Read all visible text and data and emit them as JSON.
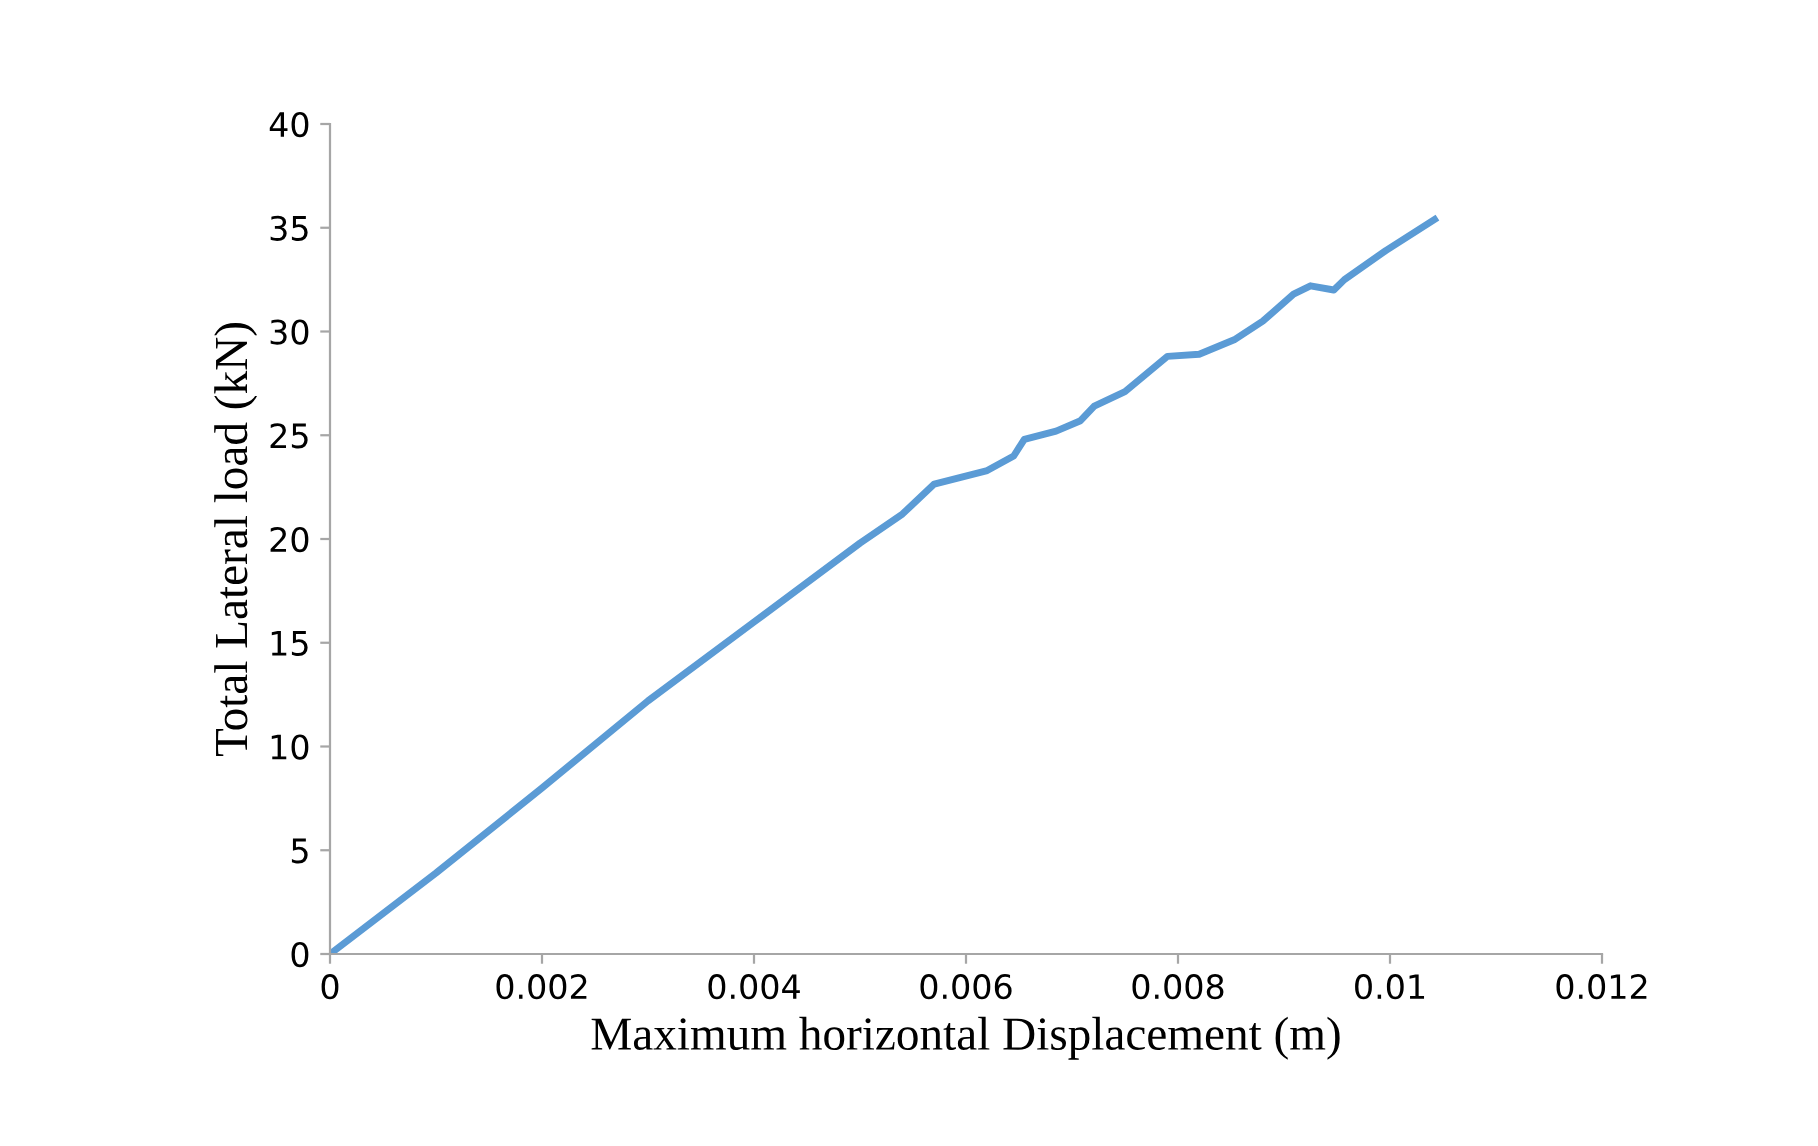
{
  "chart_data": {
    "type": "line",
    "xlabel": "Maximum horizontal Displacement (m)",
    "ylabel": "Total Lateral load (kN)",
    "xlim": [
      0,
      0.012
    ],
    "xticks": [
      0,
      0.002,
      0.004,
      0.006,
      0.008,
      0.01,
      0.012
    ],
    "ylim": [
      0,
      40
    ],
    "yticks": [
      0,
      5,
      10,
      15,
      20,
      25,
      30,
      35,
      40
    ],
    "grid": false,
    "legend": false,
    "marker": "none",
    "line_style": "solid",
    "series": [
      {
        "color": "#5b9bd5",
        "x": [
          0,
          0.001,
          0.002,
          0.003,
          0.004,
          0.005,
          0.0054,
          0.0057,
          0.0062,
          0.00645,
          0.00655,
          0.00685,
          0.00708,
          0.00721,
          0.0075,
          0.0079,
          0.0082,
          0.00853,
          0.0088,
          0.00909,
          0.00925,
          0.00947,
          0.00957,
          0.00996,
          0.01042
        ],
        "values": [
          0,
          3.9,
          8.0,
          12.2,
          16.0,
          19.8,
          21.2,
          22.65,
          23.3,
          24.0,
          24.8,
          25.2,
          25.7,
          26.4,
          27.1,
          28.8,
          28.9,
          29.6,
          30.5,
          31.8,
          32.2,
          32.0,
          32.5,
          33.9,
          35.4
        ]
      }
    ]
  }
}
